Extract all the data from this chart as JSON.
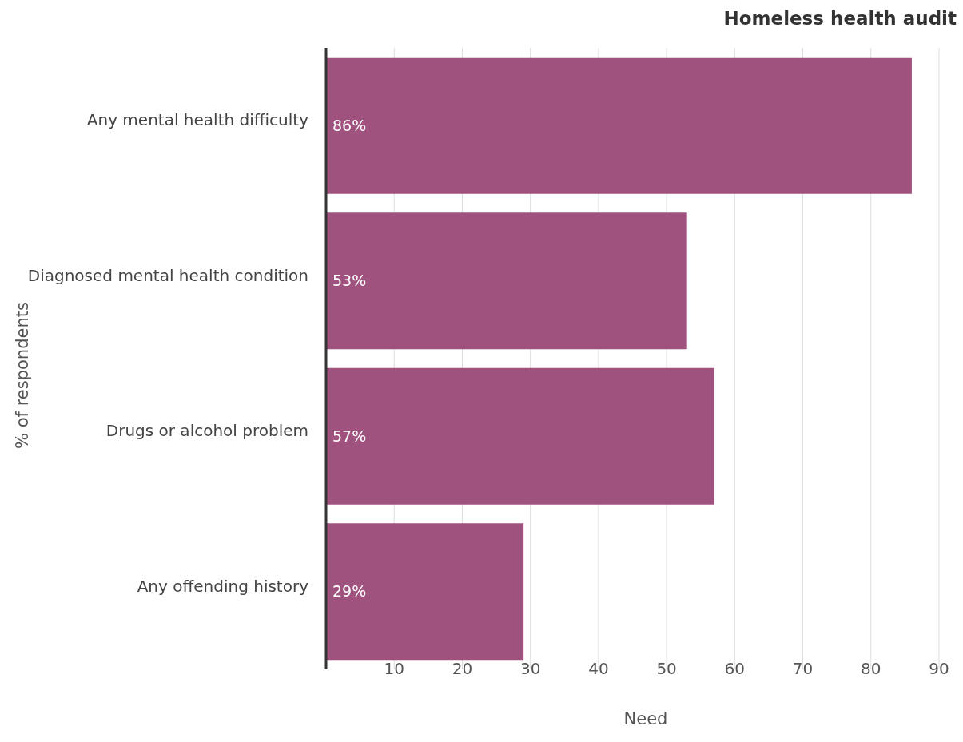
{
  "chart_data": {
    "type": "bar",
    "orientation": "horizontal",
    "title": "Homeless health audit",
    "xlabel": "Need",
    "ylabel": "% of respondents",
    "categories": [
      "Any mental health difficulty",
      "Diagnosed mental health condition",
      "Drugs or alcohol problem",
      "Any offending history"
    ],
    "values": [
      86,
      53,
      57,
      29
    ],
    "value_labels": [
      "86%",
      "53%",
      "57%",
      "29%"
    ],
    "color": "#a0527f",
    "xlim": [
      0,
      90
    ],
    "xticks": [
      10,
      20,
      30,
      40,
      50,
      60,
      70,
      80,
      90
    ],
    "grid": "x"
  }
}
